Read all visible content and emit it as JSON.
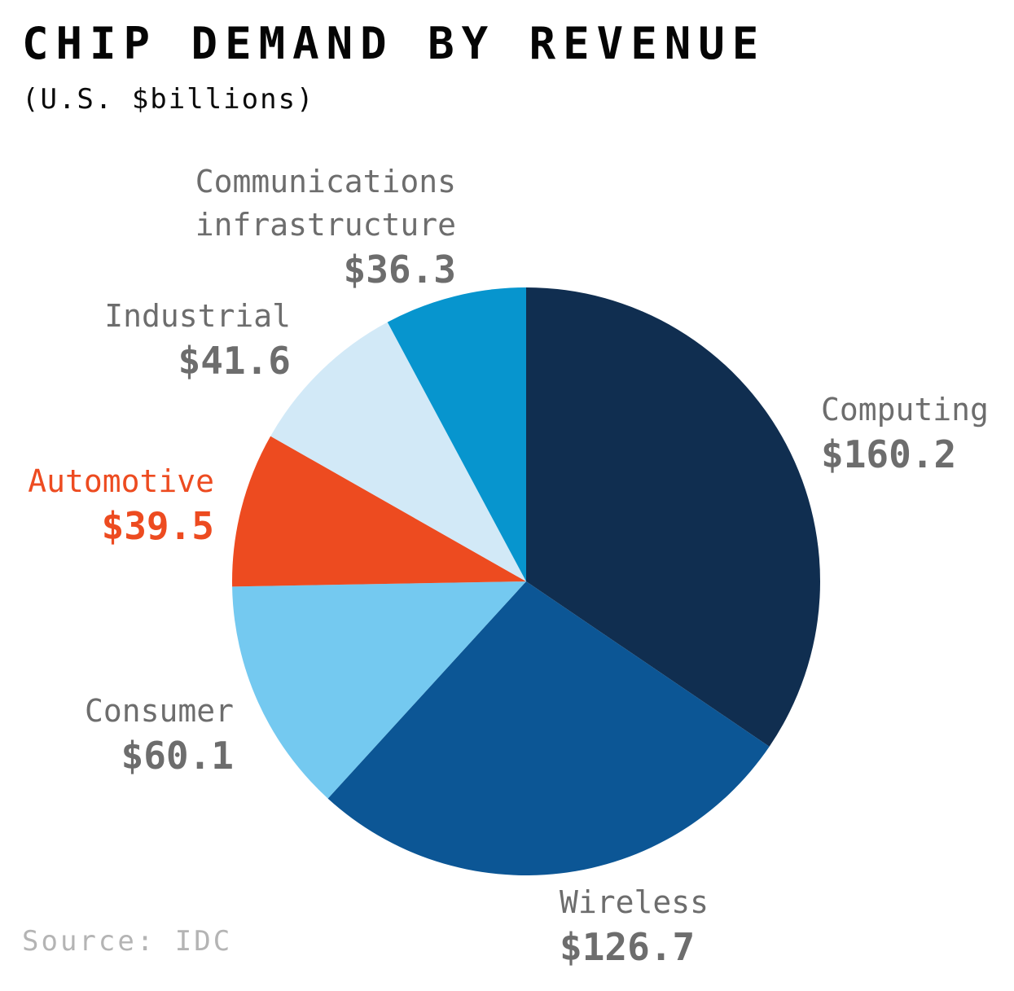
{
  "header": {
    "title": "CHIP DEMAND BY REVENUE",
    "subtitle": "(U.S. $billions)"
  },
  "source": "Source: IDC",
  "colors": {
    "label_gray": "#6d6d6d",
    "source_gray": "#b4b4b4",
    "automotive_accent": "#ed4b20"
  },
  "chart_data": {
    "type": "pie",
    "title": "CHIP DEMAND BY REVENUE",
    "units": "U.S. $billions",
    "start_angle_deg": 0,
    "direction": "clockwise",
    "legend_position": "labels-around-pie",
    "slices": [
      {
        "label": "Computing",
        "value": 160.2,
        "display": "$160.2",
        "color": "#102e50",
        "label_color": "#6d6d6d"
      },
      {
        "label": "Wireless",
        "value": 126.7,
        "display": "$126.7",
        "color": "#0c5695",
        "label_color": "#6d6d6d"
      },
      {
        "label": "Consumer",
        "value": 60.1,
        "display": "$60.1",
        "color": "#74c9f0",
        "label_color": "#6d6d6d"
      },
      {
        "label": "Automotive",
        "value": 39.5,
        "display": "$39.5",
        "color": "#ed4b20",
        "label_color": "#ed4b20"
      },
      {
        "label": "Industrial",
        "value": 41.6,
        "display": "$41.6",
        "color": "#d2e9f7",
        "label_color": "#6d6d6d"
      },
      {
        "label": "Communications infrastructure",
        "value": 36.3,
        "display": "$36.3",
        "color": "#0795ce",
        "label_color": "#6d6d6d"
      }
    ]
  }
}
